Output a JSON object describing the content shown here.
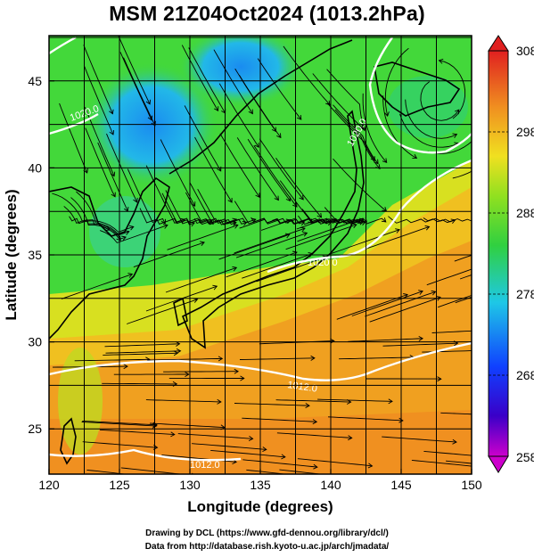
{
  "title": "MSM 21Z04Oct2024 (1013.2hPa)",
  "axes": {
    "x_label": "Longitude (degrees)",
    "y_label": "Latitude  (degrees)",
    "x_ticks": [
      120,
      125,
      130,
      135,
      140,
      145,
      150
    ],
    "y_ticks": [
      25,
      30,
      35,
      40,
      45
    ],
    "x_range": [
      120,
      150
    ],
    "y_range": [
      22.4,
      47.6
    ]
  },
  "colorbar": {
    "ticks": [
      258,
      268,
      278,
      288,
      298,
      308
    ],
    "range": [
      258,
      308
    ],
    "unit_hint": "K"
  },
  "contour_labels": [
    "1020.0",
    "1020.0",
    "1020.0",
    "1012.0",
    "1012.0"
  ],
  "credits": {
    "line1": "Drawing by DCL (https://www.gfd-dennou.org/library/dcl/)",
    "line2": "Data from http://database.rish.kyoto-u.ac.jp/arch/jmadata/"
  },
  "colors": {
    "warm": "#f0a020",
    "mid": "#3fd640",
    "cool": "#1ec8e6",
    "cold": "#1a7dff",
    "contour": "#ffffff",
    "stream": "#000000"
  }
}
